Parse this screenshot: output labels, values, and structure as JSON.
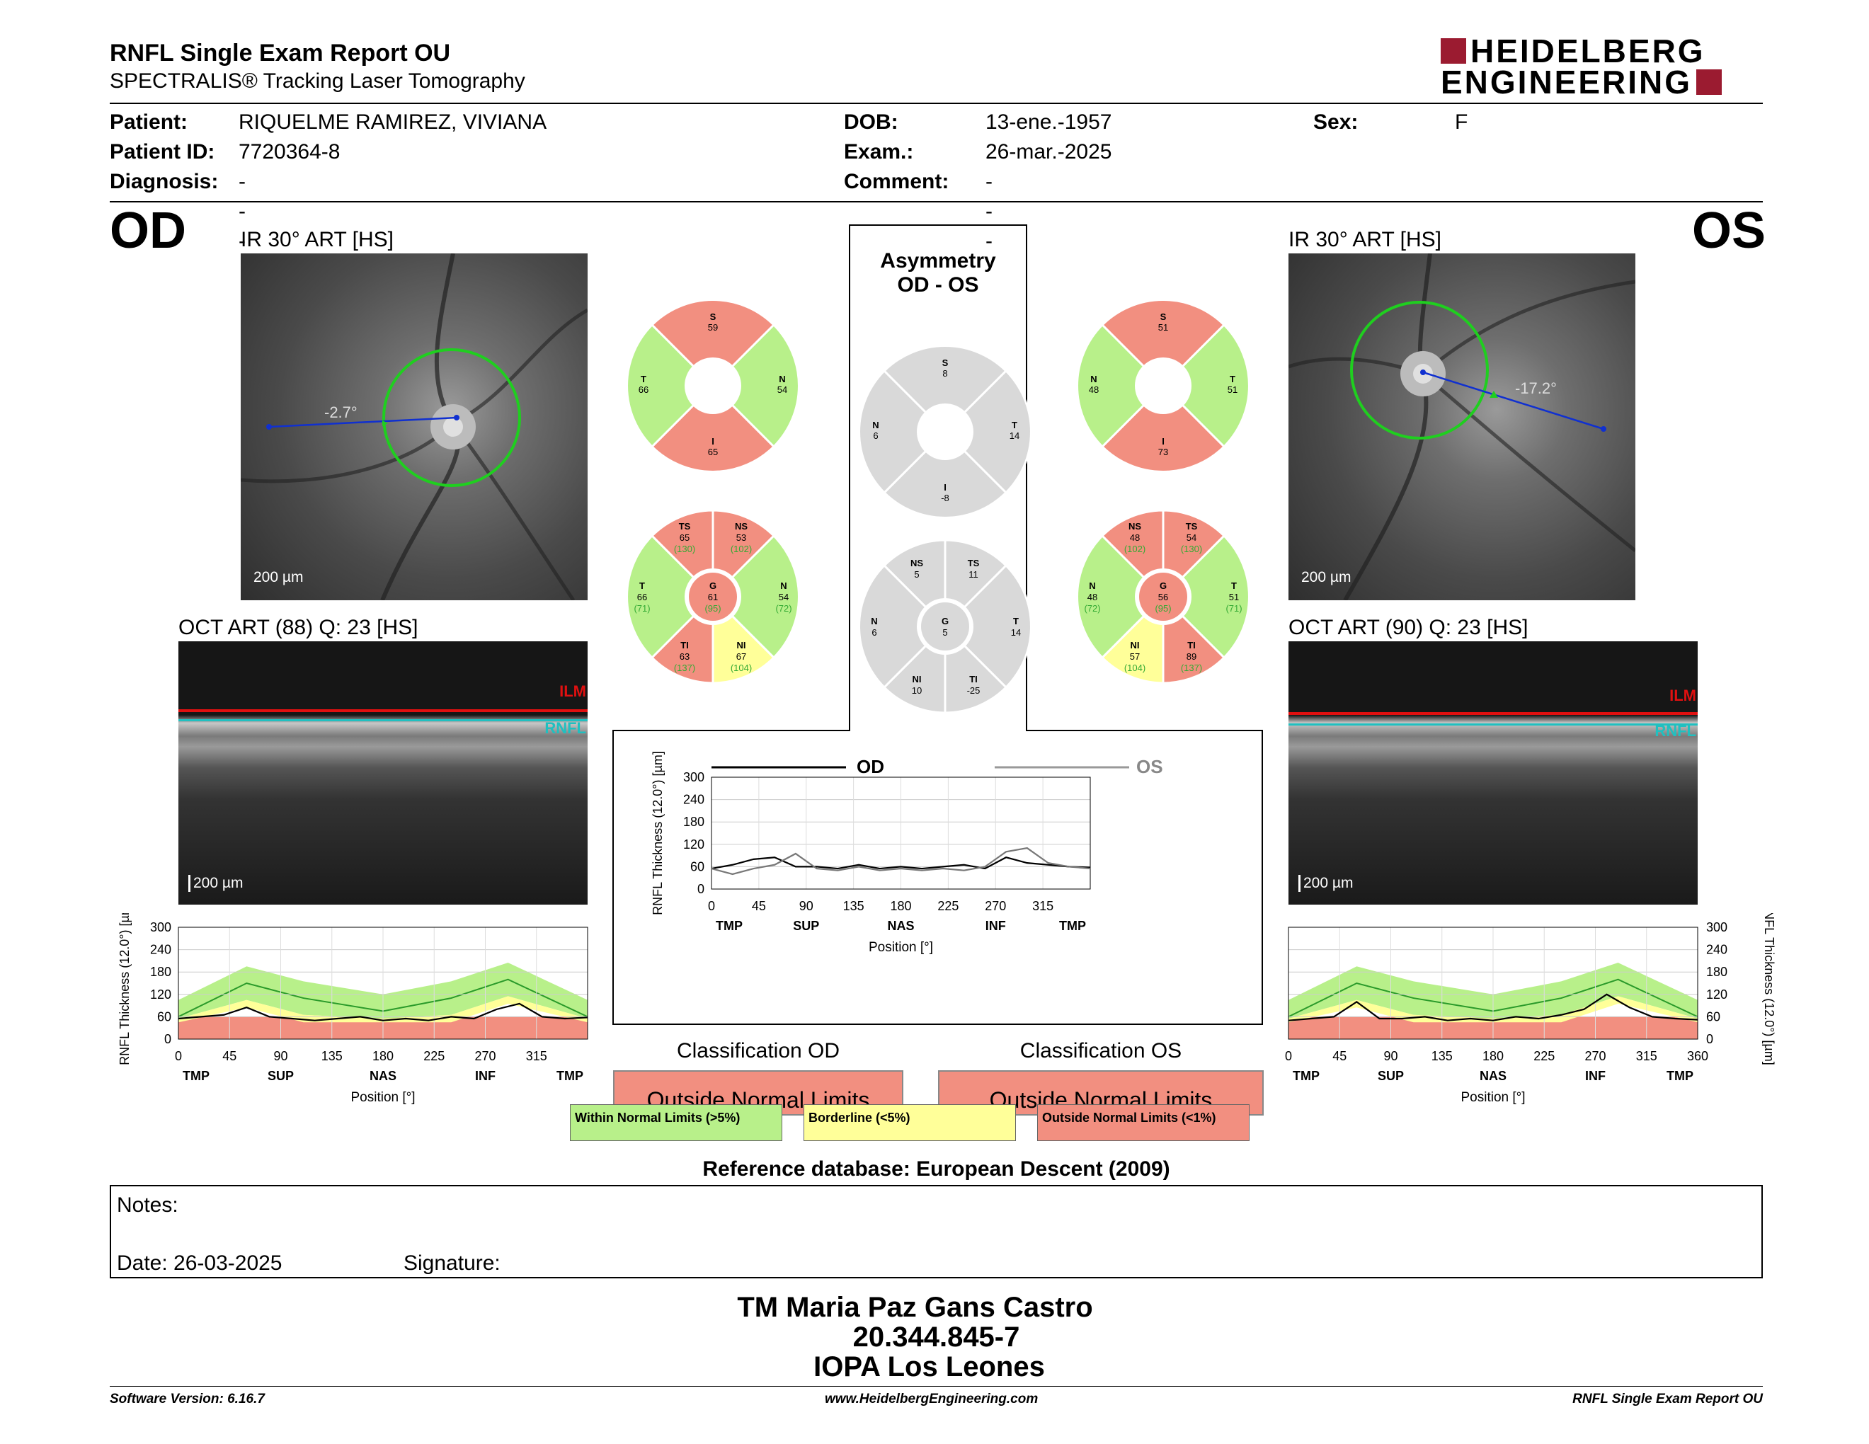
{
  "header": {
    "title": "RNFL Single Exam Report OU",
    "subtitle": "SPECTRALIS® Tracking Laser Tomography",
    "logo_line1": "HEIDELBERG",
    "logo_line2": "ENGINEERING"
  },
  "patient": {
    "patient_label": "Patient:",
    "patient": "RIQUELME RAMIREZ, VIVIANA",
    "id_label": "Patient ID:",
    "id": "7720364-8",
    "diag_label": "Diagnosis:",
    "diagnosis": "---",
    "dob_label": "DOB:",
    "dob": "13-ene.-1957",
    "exam_label": "Exam.:",
    "exam": "26-mar.-2025",
    "comment_label": "Comment:",
    "comment": "---",
    "sex_label": "Sex:",
    "sex": "F"
  },
  "od": {
    "eye": "OD",
    "ir_title": "IR 30° ART [HS]",
    "angle": "-2.7°",
    "scale": "200 µm",
    "oct_title": "OCT ART (88) Q: 23 [HS]",
    "ilm": "ILM",
    "rnfl": "RNFL",
    "oct_scale": "200 µm",
    "sectors4": {
      "S": "59",
      "T": "66",
      "N": "54",
      "I": "65"
    },
    "sectors6": {
      "TS": "65",
      "TS_ref": "(130)",
      "NS": "53",
      "NS_ref": "(102)",
      "T": "66",
      "T_ref": "(71)",
      "G": "61",
      "G_ref": "(95)",
      "N": "54",
      "N_ref": "(72)",
      "TI": "63",
      "TI_ref": "(137)",
      "NI": "67",
      "NI_ref": "(104)"
    }
  },
  "os": {
    "eye": "OS",
    "ir_title": "IR 30° ART [HS]",
    "angle": "-17.2°",
    "scale": "200 µm",
    "oct_title": "OCT ART (90) Q: 23 [HS]",
    "ilm": "ILM",
    "rnfl": "RNFL",
    "oct_scale": "200 µm",
    "sectors4": {
      "S": "51",
      "N": "48",
      "T": "51",
      "I": "73"
    },
    "sectors6": {
      "NS": "48",
      "NS_ref": "(102)",
      "TS": "54",
      "TS_ref": "(130)",
      "N": "48",
      "N_ref": "(72)",
      "G": "56",
      "G_ref": "(95)",
      "T": "51",
      "T_ref": "(71)",
      "NI": "57",
      "NI_ref": "(104)",
      "TI": "89",
      "TI_ref": "(137)"
    }
  },
  "asym": {
    "title1": "Asymmetry",
    "title2": "OD - OS",
    "sectors4": {
      "S": "8",
      "N": "6",
      "T": "14",
      "I": "-8"
    },
    "sectors6": {
      "NS": "5",
      "TS": "11",
      "N": "6",
      "G": "5",
      "T": "14",
      "NI": "10",
      "TI": "-25"
    }
  },
  "labels": {
    "S": "S",
    "T": "T",
    "N": "N",
    "I": "I",
    "TS": "TS",
    "NS": "NS",
    "G": "G",
    "TI": "TI",
    "NI": "NI",
    "OD": "OD",
    "OS": "OS"
  },
  "chart_data": [
    {
      "type": "line",
      "title": "",
      "xlabel": "Position [°]",
      "ylabel": "RNFL Thickness (12.0°) [µm]",
      "ylim": [
        0,
        300
      ],
      "xlim": [
        0,
        360
      ],
      "yticks": [
        "0",
        "60",
        "120",
        "180",
        "240",
        "300"
      ],
      "xticks": [
        "0",
        "45",
        "90",
        "135",
        "180",
        "225",
        "270",
        "315"
      ],
      "sectors": [
        "TMP",
        "SUP",
        "NAS",
        "INF",
        "TMP"
      ],
      "series": [
        {
          "name": "OD",
          "x": [
            0,
            20,
            40,
            60,
            80,
            100,
            120,
            140,
            160,
            180,
            200,
            220,
            240,
            260,
            280,
            300,
            320,
            340,
            360
          ],
          "values": [
            55,
            60,
            65,
            85,
            60,
            55,
            50,
            55,
            60,
            50,
            55,
            50,
            60,
            55,
            80,
            95,
            60,
            55,
            58
          ]
        }
      ],
      "normal_mean": [
        {
          "x": 0,
          "y": 60
        },
        {
          "x": 60,
          "y": 150
        },
        {
          "x": 110,
          "y": 110
        },
        {
          "x": 180,
          "y": 75
        },
        {
          "x": 240,
          "y": 110
        },
        {
          "x": 290,
          "y": 160
        },
        {
          "x": 360,
          "y": 60
        }
      ]
    },
    {
      "type": "line",
      "title": "",
      "xlabel": "Position [°]",
      "ylabel": "RNFL Thickness (12.0°) [µm]",
      "ylim": [
        0,
        300
      ],
      "xlim": [
        0,
        360
      ],
      "yticks": [
        "0",
        "60",
        "120",
        "180",
        "240",
        "300"
      ],
      "xticks": [
        "0",
        "45",
        "90",
        "135",
        "180",
        "225",
        "270",
        "315"
      ],
      "sectors": [
        "TMP",
        "SUP",
        "NAS",
        "INF",
        "TMP"
      ],
      "series": [
        {
          "name": "OD",
          "x": [
            0,
            20,
            40,
            60,
            80,
            100,
            120,
            140,
            160,
            180,
            200,
            220,
            240,
            260,
            280,
            300,
            320,
            340,
            360
          ],
          "values": [
            55,
            65,
            80,
            85,
            60,
            60,
            55,
            65,
            55,
            60,
            55,
            60,
            65,
            55,
            85,
            70,
            65,
            60,
            58
          ]
        },
        {
          "name": "OS",
          "x": [
            0,
            20,
            40,
            60,
            80,
            100,
            120,
            140,
            160,
            180,
            200,
            220,
            240,
            260,
            280,
            300,
            320,
            340,
            360
          ],
          "values": [
            55,
            40,
            55,
            65,
            95,
            55,
            50,
            60,
            50,
            55,
            50,
            55,
            50,
            60,
            100,
            110,
            70,
            60,
            55
          ]
        }
      ]
    },
    {
      "type": "line",
      "title": "",
      "xlabel": "Position [°]",
      "ylabel": "RNFL Thickness (12.0°) [µm]",
      "ylim": [
        0,
        300
      ],
      "xlim": [
        0,
        360
      ],
      "yticks": [
        "0",
        "60",
        "120",
        "180",
        "240",
        "300"
      ],
      "xticks": [
        "0",
        "45",
        "90",
        "135",
        "180",
        "225",
        "270",
        "315",
        "360"
      ],
      "sectors": [
        "TMP",
        "SUP",
        "NAS",
        "INF",
        "TMP"
      ],
      "series": [
        {
          "name": "OS",
          "x": [
            0,
            20,
            40,
            60,
            80,
            100,
            120,
            140,
            160,
            180,
            200,
            220,
            240,
            260,
            280,
            300,
            320,
            340,
            360
          ],
          "values": [
            50,
            55,
            60,
            100,
            55,
            55,
            60,
            50,
            55,
            50,
            60,
            55,
            65,
            80,
            120,
            85,
            60,
            55,
            52
          ]
        }
      ],
      "normal_mean": [
        {
          "x": 0,
          "y": 60
        },
        {
          "x": 60,
          "y": 150
        },
        {
          "x": 110,
          "y": 110
        },
        {
          "x": 180,
          "y": 75
        },
        {
          "x": 240,
          "y": 110
        },
        {
          "x": 290,
          "y": 160
        },
        {
          "x": 360,
          "y": 60
        }
      ]
    }
  ],
  "classification": {
    "od_title": "Classification OD",
    "os_title": "Classification OS",
    "od_value": "Outside Normal Limits",
    "os_value": "Outside Normal Limits",
    "legend": [
      {
        "label": "Within Normal Limits (>5%)",
        "color": "#b8f08a"
      },
      {
        "label": "Borderline (<5%)",
        "color": "#ffff99"
      },
      {
        "label": "Outside Normal Limits (<1%)",
        "color": "#f28f80"
      }
    ]
  },
  "reference": "Reference database: European Descent (2009)",
  "notes": {
    "label": "Notes:",
    "date": "Date: 26-03-2025",
    "signature": "Signature:"
  },
  "stamp": {
    "line1": "TM Maria Paz Gans Castro",
    "line2": "20.344.845-7",
    "line3": "IOPA Los Leones"
  },
  "footer": {
    "left": "Software Version: 6.16.7",
    "center": "www.HeidelbergEngineering.com",
    "right": "RNFL Single Exam Report OU"
  },
  "colors": {
    "green": "#b8f08a",
    "yellow": "#ffff99",
    "red": "#f28f80",
    "grey": "#d9d9d9",
    "brand": "#9b1b30"
  }
}
